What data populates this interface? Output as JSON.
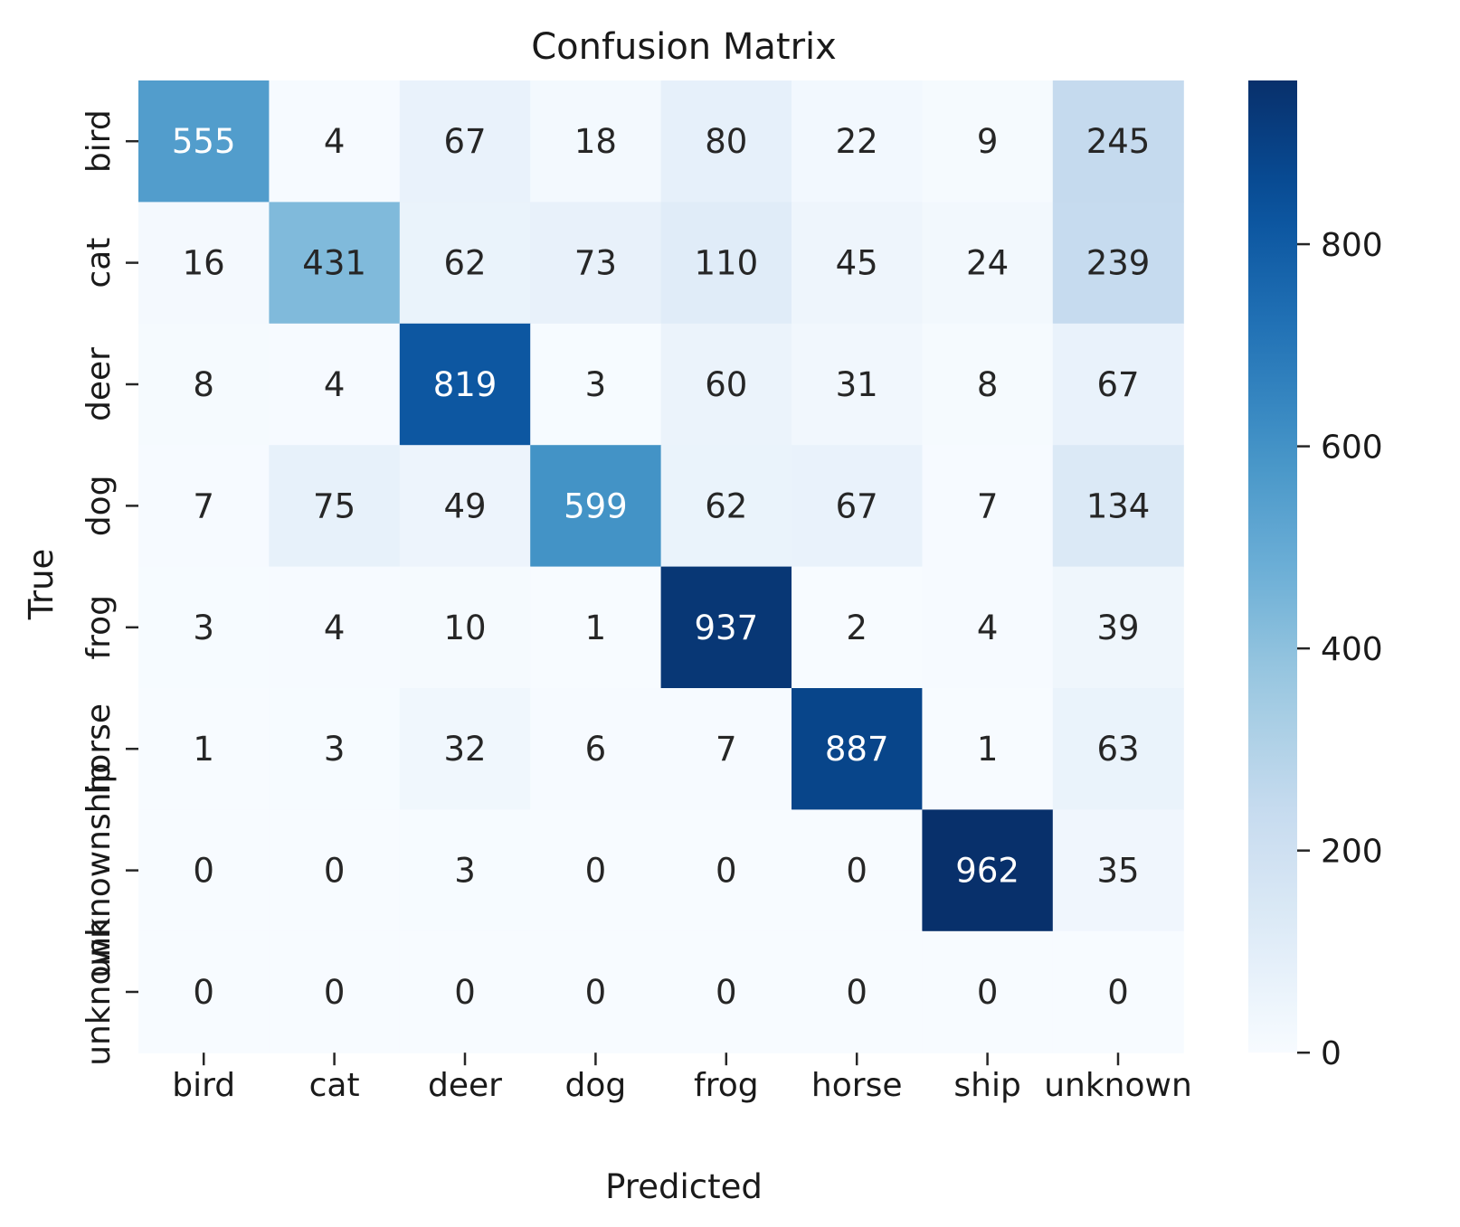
{
  "chart_data": {
    "type": "heatmap",
    "title": "Confusion Matrix",
    "xlabel": "Predicted",
    "ylabel": "True",
    "x_categories": [
      "bird",
      "cat",
      "deer",
      "dog",
      "frog",
      "horse",
      "ship",
      "unknown"
    ],
    "y_categories": [
      "bird",
      "cat",
      "deer",
      "dog",
      "frog",
      "horse",
      "unknownship",
      "unknown"
    ],
    "matrix": [
      [
        555,
        4,
        67,
        18,
        80,
        22,
        9,
        245
      ],
      [
        16,
        431,
        62,
        73,
        110,
        45,
        24,
        239
      ],
      [
        8,
        4,
        819,
        3,
        60,
        31,
        8,
        67
      ],
      [
        7,
        75,
        49,
        599,
        62,
        67,
        7,
        134
      ],
      [
        3,
        4,
        10,
        1,
        937,
        2,
        4,
        39
      ],
      [
        1,
        3,
        32,
        6,
        7,
        887,
        1,
        63
      ],
      [
        0,
        0,
        3,
        0,
        0,
        0,
        962,
        35
      ],
      [
        0,
        0,
        0,
        0,
        0,
        0,
        0,
        0
      ]
    ],
    "colorbar": {
      "colormap": "Blues",
      "range": [
        0,
        962
      ],
      "ticks": [
        0,
        200,
        400,
        600,
        800
      ]
    },
    "grid": false
  }
}
